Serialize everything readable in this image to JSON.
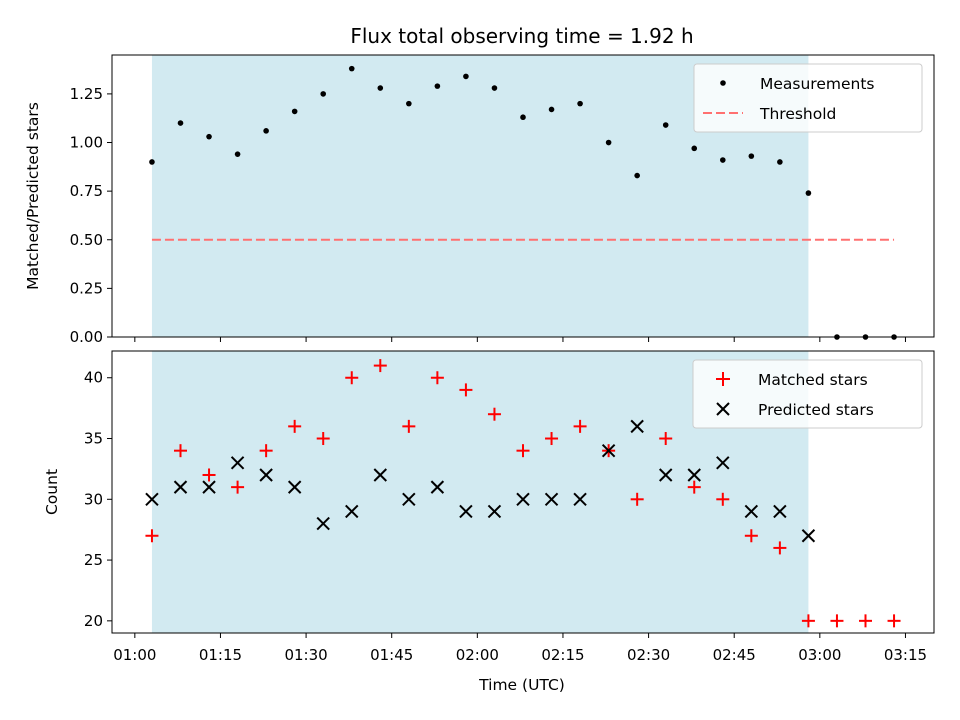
{
  "chart_data": [
    {
      "type": "scatter",
      "title": "Flux total observing time = 1.92 h",
      "ylabel": "Matched/Predicted stars",
      "xlabel": "",
      "xlim": [
        "00:56",
        "03:20"
      ],
      "ylim": [
        0,
        1.45
      ],
      "y_ticks": [
        "0.00",
        "0.25",
        "0.50",
        "0.75",
        "1.00",
        "1.25"
      ],
      "observing_window": [
        "01:03",
        "02:58"
      ],
      "observing_window_color": "#add8e6",
      "legend_position": "top-right",
      "series": [
        {
          "name": "Measurements",
          "marker": "dot",
          "color": "#000000",
          "x": [
            "01:03",
            "01:08",
            "01:13",
            "01:18",
            "01:23",
            "01:28",
            "01:33",
            "01:38",
            "01:43",
            "01:48",
            "01:53",
            "01:58",
            "02:03",
            "02:08",
            "02:13",
            "02:18",
            "02:23",
            "02:28",
            "02:33",
            "02:38",
            "02:43",
            "02:48",
            "02:53",
            "02:58",
            "03:03",
            "03:08",
            "03:13"
          ],
          "y": [
            0.9,
            1.1,
            1.03,
            0.94,
            1.06,
            1.16,
            1.25,
            1.38,
            1.28,
            1.2,
            1.29,
            1.34,
            1.28,
            1.13,
            1.17,
            1.2,
            1.0,
            0.83,
            1.09,
            0.97,
            0.91,
            0.93,
            0.9,
            0.74,
            0.0,
            0.0,
            0.0
          ]
        },
        {
          "name": "Threshold",
          "marker": "dashed-line",
          "color": "#ff7070",
          "x": [
            "01:03",
            "03:13"
          ],
          "y": [
            0.5,
            0.5
          ]
        }
      ]
    },
    {
      "type": "scatter",
      "title": "",
      "ylabel": "Count",
      "xlabel": "Time (UTC)",
      "xlim": [
        "00:56",
        "03:20"
      ],
      "ylim": [
        19,
        42.2
      ],
      "y_ticks": [
        "20",
        "25",
        "30",
        "35",
        "40"
      ],
      "x_ticks": [
        "01:00",
        "01:15",
        "01:30",
        "01:45",
        "02:00",
        "02:15",
        "02:30",
        "02:45",
        "03:00",
        "03:15"
      ],
      "observing_window": [
        "01:03",
        "02:58"
      ],
      "observing_window_color": "#add8e6",
      "legend_position": "top-right",
      "series": [
        {
          "name": "Matched stars",
          "marker": "plus",
          "color": "#ff0000",
          "x": [
            "01:03",
            "01:08",
            "01:13",
            "01:18",
            "01:23",
            "01:28",
            "01:33",
            "01:38",
            "01:43",
            "01:48",
            "01:53",
            "01:58",
            "02:03",
            "02:08",
            "02:13",
            "02:18",
            "02:23",
            "02:28",
            "02:33",
            "02:38",
            "02:43",
            "02:48",
            "02:53",
            "02:58",
            "03:03",
            "03:08",
            "03:13"
          ],
          "y": [
            27,
            34,
            32,
            31,
            34,
            36,
            35,
            40,
            41,
            36,
            40,
            39,
            37,
            34,
            35,
            36,
            34,
            30,
            35,
            31,
            30,
            27,
            26,
            20,
            20,
            20,
            20
          ]
        },
        {
          "name": "Predicted stars",
          "marker": "x",
          "color": "#000000",
          "x": [
            "01:03",
            "01:08",
            "01:13",
            "01:18",
            "01:23",
            "01:28",
            "01:33",
            "01:38",
            "01:43",
            "01:48",
            "01:53",
            "01:58",
            "02:03",
            "02:08",
            "02:13",
            "02:18",
            "02:23",
            "02:28",
            "02:33",
            "02:38",
            "02:43",
            "02:48",
            "02:53",
            "02:58"
          ],
          "y": [
            30,
            31,
            31,
            33,
            32,
            31,
            28,
            29,
            32,
            30,
            31,
            29,
            29,
            30,
            30,
            30,
            34,
            36,
            32,
            32,
            33,
            29,
            29,
            27
          ]
        }
      ]
    }
  ]
}
